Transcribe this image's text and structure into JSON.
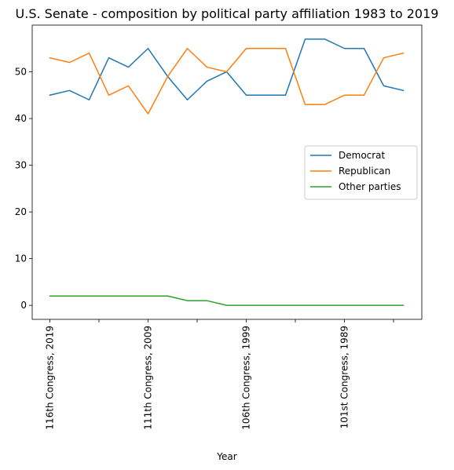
{
  "chart_data": {
    "type": "line",
    "title": "U.S. Senate - composition by political party affiliation 1983 to 2019",
    "xlabel": "Year",
    "ylabel": "",
    "x_tick_labels": [
      {
        "index": 0,
        "label": "116th Congress, 2019"
      },
      {
        "index": 5,
        "label": "111th Congress, 2009"
      },
      {
        "index": 10,
        "label": "106th Congress, 1999"
      },
      {
        "index": 15,
        "label": "101st Congress, 1989"
      }
    ],
    "x_minor_tick_indices": [
      2.5,
      7.5,
      12.5,
      17.5
    ],
    "x_count": 19,
    "ylim": [
      -3,
      60
    ],
    "y_ticks": [
      0,
      10,
      20,
      30,
      40,
      50
    ],
    "grid": false,
    "legend_position": "center-right",
    "series": [
      {
        "name": "Democrat",
        "color": "#1f77b4",
        "values": [
          45,
          46,
          44,
          53,
          51,
          55,
          49,
          44,
          48,
          50,
          45,
          45,
          45,
          57,
          57,
          55,
          55,
          47,
          46
        ]
      },
      {
        "name": "Republican",
        "color": "#ff7f0e",
        "values": [
          53,
          52,
          54,
          45,
          47,
          41,
          49,
          55,
          51,
          50,
          55,
          55,
          55,
          43,
          43,
          45,
          45,
          53,
          54
        ]
      },
      {
        "name": "Other parties",
        "color": "#2ca02c",
        "values": [
          2,
          2,
          2,
          2,
          2,
          2,
          2,
          1,
          1,
          0,
          0,
          0,
          0,
          0,
          0,
          0,
          0,
          0,
          0
        ]
      }
    ]
  }
}
